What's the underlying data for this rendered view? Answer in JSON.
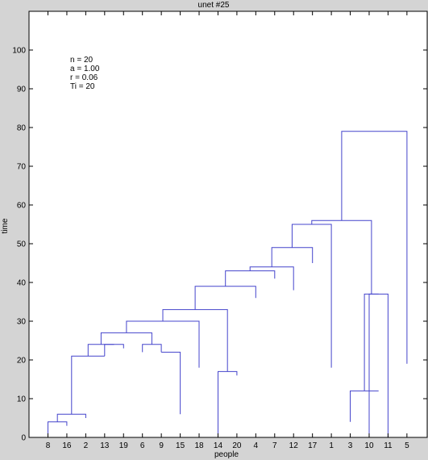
{
  "chart_data": {
    "type": "dendrogram",
    "title": "unet #25",
    "xlabel": "people",
    "ylabel": "time",
    "ylim": [
      0,
      110
    ],
    "yticks": [
      0,
      10,
      20,
      30,
      40,
      50,
      60,
      70,
      80,
      90,
      100
    ],
    "leaf_order": [
      "8",
      "16",
      "2",
      "13",
      "19",
      "6",
      "9",
      "15",
      "18",
      "14",
      "20",
      "4",
      "7",
      "12",
      "17",
      "1",
      "3",
      "10",
      "11",
      "5"
    ],
    "annotation": [
      "n = 20",
      "a = 1.00",
      "r = 0.06",
      "Ti = 20"
    ],
    "colors": {
      "tree": "#4444cc",
      "axis": "#000000",
      "plot_bg": "#ffffff",
      "figure_bg": "#d4d4d4"
    },
    "merges": [
      {
        "left": 1,
        "right": 2,
        "height": 4,
        "left_base": 0,
        "right_base": 3
      },
      {
        "left": 1.5,
        "right": 3,
        "height": 6,
        "left_base": 4,
        "right_base": 5
      },
      {
        "left": 4,
        "right": 5,
        "height": 24,
        "left_base": 21,
        "right_base": 23
      },
      {
        "left": 6,
        "right": 7,
        "height": 24,
        "left_base": 22,
        "right_base": 22
      },
      {
        "left": 7,
        "right": 8,
        "height": 22,
        "left_base": 22,
        "right_base": 6
      },
      {
        "left": 2.25,
        "right": 4,
        "height": 21,
        "left_base": 6,
        "right_base": 21
      },
      {
        "left": 3.125,
        "right": 4.5,
        "height": 24,
        "left_base": 21,
        "right_base": 24
      },
      {
        "left": 3.8125,
        "right": 6.5,
        "height": 27,
        "left_base": 24,
        "right_base": 24
      },
      {
        "left": 5.15625,
        "right": 9,
        "height": 30,
        "left_base": 27,
        "right_base": 18
      },
      {
        "left": 10,
        "right": 11,
        "height": 17,
        "left_base": 0,
        "right_base": 16
      },
      {
        "left": 7.078,
        "right": 10.5,
        "height": 33,
        "left_base": 30,
        "right_base": 17
      },
      {
        "left": 8.789,
        "right": 12,
        "height": 39,
        "left_base": 33,
        "right_base": 36
      },
      {
        "left": 10.395,
        "right": 13,
        "height": 43,
        "left_base": 39,
        "right_base": 41
      },
      {
        "left": 11.697,
        "right": 14,
        "height": 44,
        "left_base": 43,
        "right_base": 38
      },
      {
        "left": 12.849,
        "right": 15,
        "height": 49,
        "left_base": 44,
        "right_base": 45
      },
      {
        "left": 13.924,
        "right": 16,
        "height": 55,
        "left_base": 49,
        "right_base": 18
      },
      {
        "left": 18,
        "right": 19,
        "height": 37,
        "left_base": 0,
        "right_base": 0
      },
      {
        "left": 17,
        "right": 18.5,
        "height": 12,
        "left_base": 4,
        "right_base": 12
      },
      {
        "left": 17.75,
        "right": 18.5,
        "height": 37,
        "left_base": 12,
        "right_base": 37
      },
      {
        "left": 14.962,
        "right": 18.125,
        "height": 56,
        "left_base": 55,
        "right_base": 37
      },
      {
        "left": 16.544,
        "right": 20,
        "height": 79,
        "left_base": 56,
        "right_base": 19
      }
    ]
  }
}
